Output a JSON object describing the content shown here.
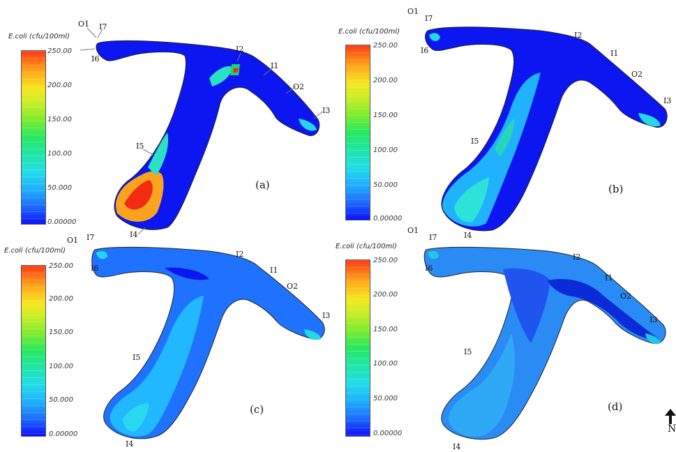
{
  "legend": {
    "title": "E.coli (cfu/100ml)",
    "ticks": [
      "250.00",
      "200.00",
      "150.00",
      "100.00",
      "50.000",
      "0.00000"
    ]
  },
  "panels": [
    {
      "label": "(a)"
    },
    {
      "label": "(b)"
    },
    {
      "label": "(c)"
    },
    {
      "label": "(d)"
    }
  ],
  "sites": [
    "O1",
    "I7",
    "I6",
    "I2",
    "I1",
    "O2",
    "I3",
    "I5",
    "I4"
  ],
  "north": "N",
  "colors": {
    "low": "#0a10ff",
    "mid": "#21dde8",
    "high": "#ff3a16",
    "outline": "#222222"
  }
}
